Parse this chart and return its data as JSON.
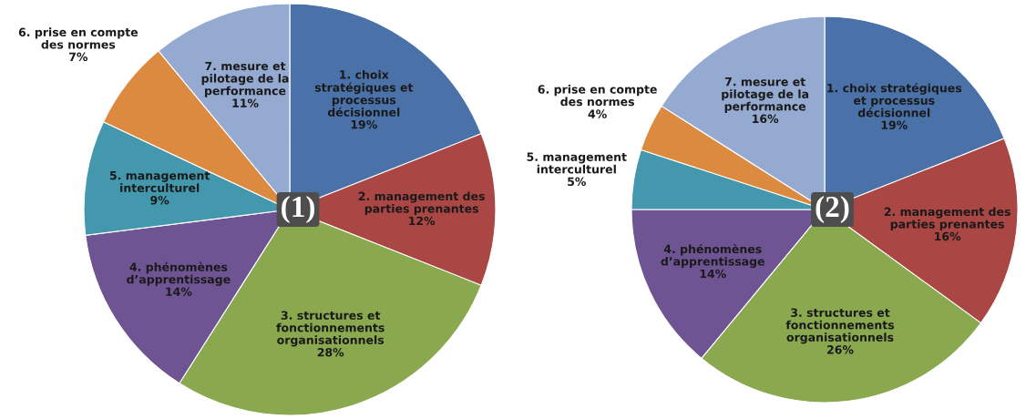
{
  "chart_data": [
    {
      "type": "pie",
      "annotations": [
        "(1)"
      ],
      "categories": [
        "1. choix\nstratégiques et\nprocessus\ndécisionnel",
        "2. management des\nparties prenantes",
        "3. structures et\nfonctionnements\norganisationnels",
        "4. phénomènes\nd’apprentissage",
        "5. management\ninterculturel",
        "6. prise en compte\ndes normes",
        "7. mesure et\npilotage de la\nperformance"
      ],
      "values": [
        19,
        12,
        28,
        14,
        9,
        7,
        11
      ],
      "value_labels": [
        "19%",
        "12%",
        "28%",
        "14%",
        "9%",
        "7%",
        "11%"
      ],
      "colors": [
        "#4a72a8",
        "#aa4644",
        "#8aa84e",
        "#6f5494",
        "#4398ad",
        "#dc8a3f",
        "#95aad1"
      ]
    },
    {
      "type": "pie",
      "annotations": [
        "(2)"
      ],
      "categories": [
        "1. choix stratégiques\net processus\ndécisionnel",
        "2. management des\nparties prenantes",
        "3. structures et\nfonctionnements\norganisationnels",
        "4. phénomènes\nd’apprentissage",
        "5. management\ninterculturel",
        "6. prise en compte\ndes normes",
        "7. mesure et\npilotage de la\nperformance"
      ],
      "values": [
        19,
        16,
        26,
        14,
        5,
        4,
        16
      ],
      "value_labels": [
        "19%",
        "16%",
        "26%",
        "14%",
        "5%",
        "4%",
        "16%"
      ],
      "colors": [
        "#4a72a8",
        "#aa4644",
        "#8aa84e",
        "#6f5494",
        "#4398ad",
        "#dc8a3f",
        "#95aad1"
      ]
    }
  ]
}
